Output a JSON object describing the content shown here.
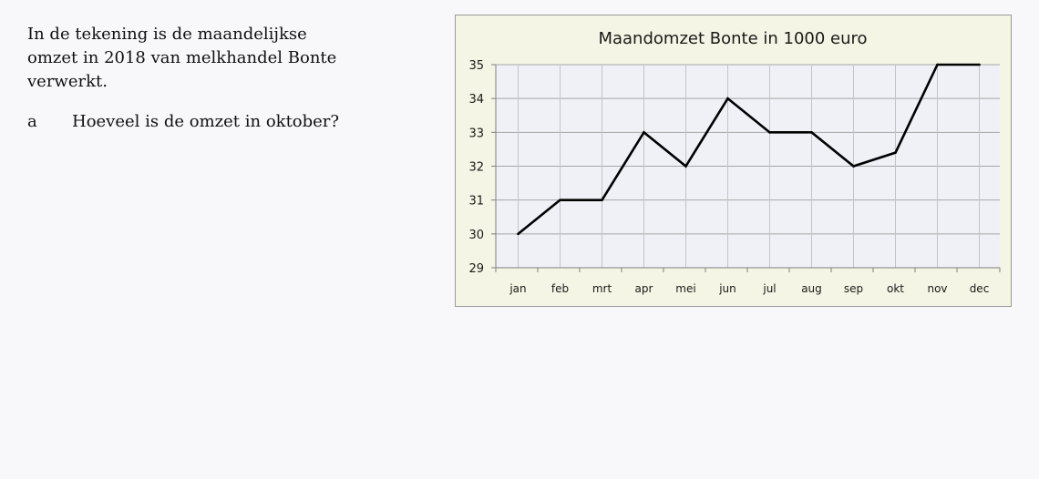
{
  "text": {
    "intro": "In de tekening is de maandelijkse omzet in 2018 van melkhandel Bonte verwerkt.",
    "question_letter": "a",
    "question_text": "Hoeveel is de omzet in oktober?"
  },
  "chart_data": {
    "type": "line",
    "title": "Maandomzet Bonte in 1000 euro",
    "xlabel": "",
    "ylabel": "",
    "categories": [
      "jan",
      "feb",
      "mrt",
      "apr",
      "mei",
      "jun",
      "jul",
      "aug",
      "sep",
      "okt",
      "nov",
      "dec"
    ],
    "series": [
      {
        "values": [
          30,
          31,
          31,
          33,
          32,
          34,
          33,
          33,
          32,
          32.4,
          35,
          35
        ]
      }
    ],
    "ylim": [
      29,
      35
    ],
    "yticks": [
      29,
      30,
      31,
      32,
      33,
      34,
      35
    ],
    "grid": true,
    "legend": "none",
    "colors": {
      "line": "#000000",
      "grid": "#a6a6a6",
      "plot_background": "#f0f1f7",
      "frame_background": "#f4f5e4"
    }
  }
}
